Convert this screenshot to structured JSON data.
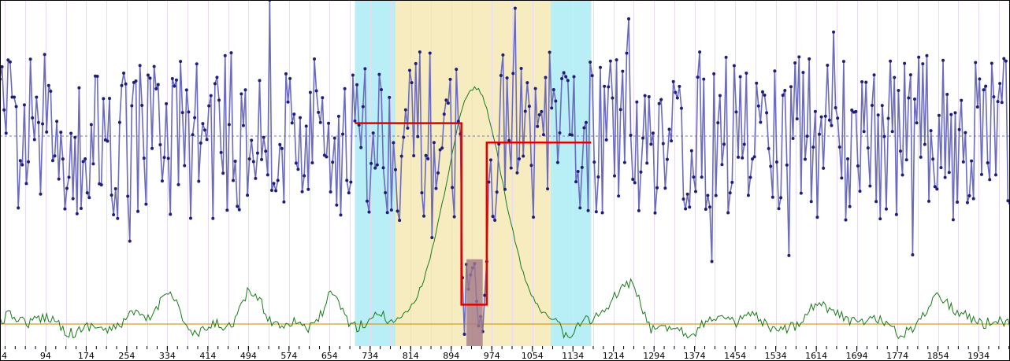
{
  "chart_data": {
    "type": "line",
    "title": "",
    "xlabel": "",
    "ylabel": "",
    "x_range": [
      4,
      1996
    ],
    "x_ticks": [
      4,
      94,
      174,
      254,
      334,
      414,
      494,
      574,
      654,
      734,
      814,
      894,
      974,
      1054,
      1134,
      1214,
      1294,
      1374,
      1454,
      1534,
      1614,
      1694,
      1774,
      1854,
      1934
    ],
    "grid": true,
    "legend": "none",
    "colors": {
      "main_series": "#6b6bc0",
      "main_points": "#1e1e7a",
      "envelope": "#1a7a1a",
      "baseline": "#d4a017",
      "mean_dashed": "#7a7aa8",
      "highlight_outer": "#b8eef5",
      "highlight_inner": "#f7ecc0",
      "step_line": "#e00000",
      "bar_fill": "#a37888"
    },
    "bands": [
      {
        "type": "outer",
        "x_from": 704,
        "x_to": 1170
      },
      {
        "type": "inner",
        "x_from": 784,
        "x_to": 1090
      }
    ],
    "step": [
      {
        "x": 704,
        "y": 0.5
      },
      {
        "x": 914,
        "y": 0.5
      },
      {
        "x": 914,
        "y": -2.3
      },
      {
        "x": 964,
        "y": -2.3
      },
      {
        "x": 964,
        "y": 0.2
      },
      {
        "x": 1170,
        "y": 0.2
      }
    ],
    "main_mean": 0.3,
    "main_y_range": [
      -3.0,
      2.4
    ],
    "baseline_level": 0.0
  }
}
